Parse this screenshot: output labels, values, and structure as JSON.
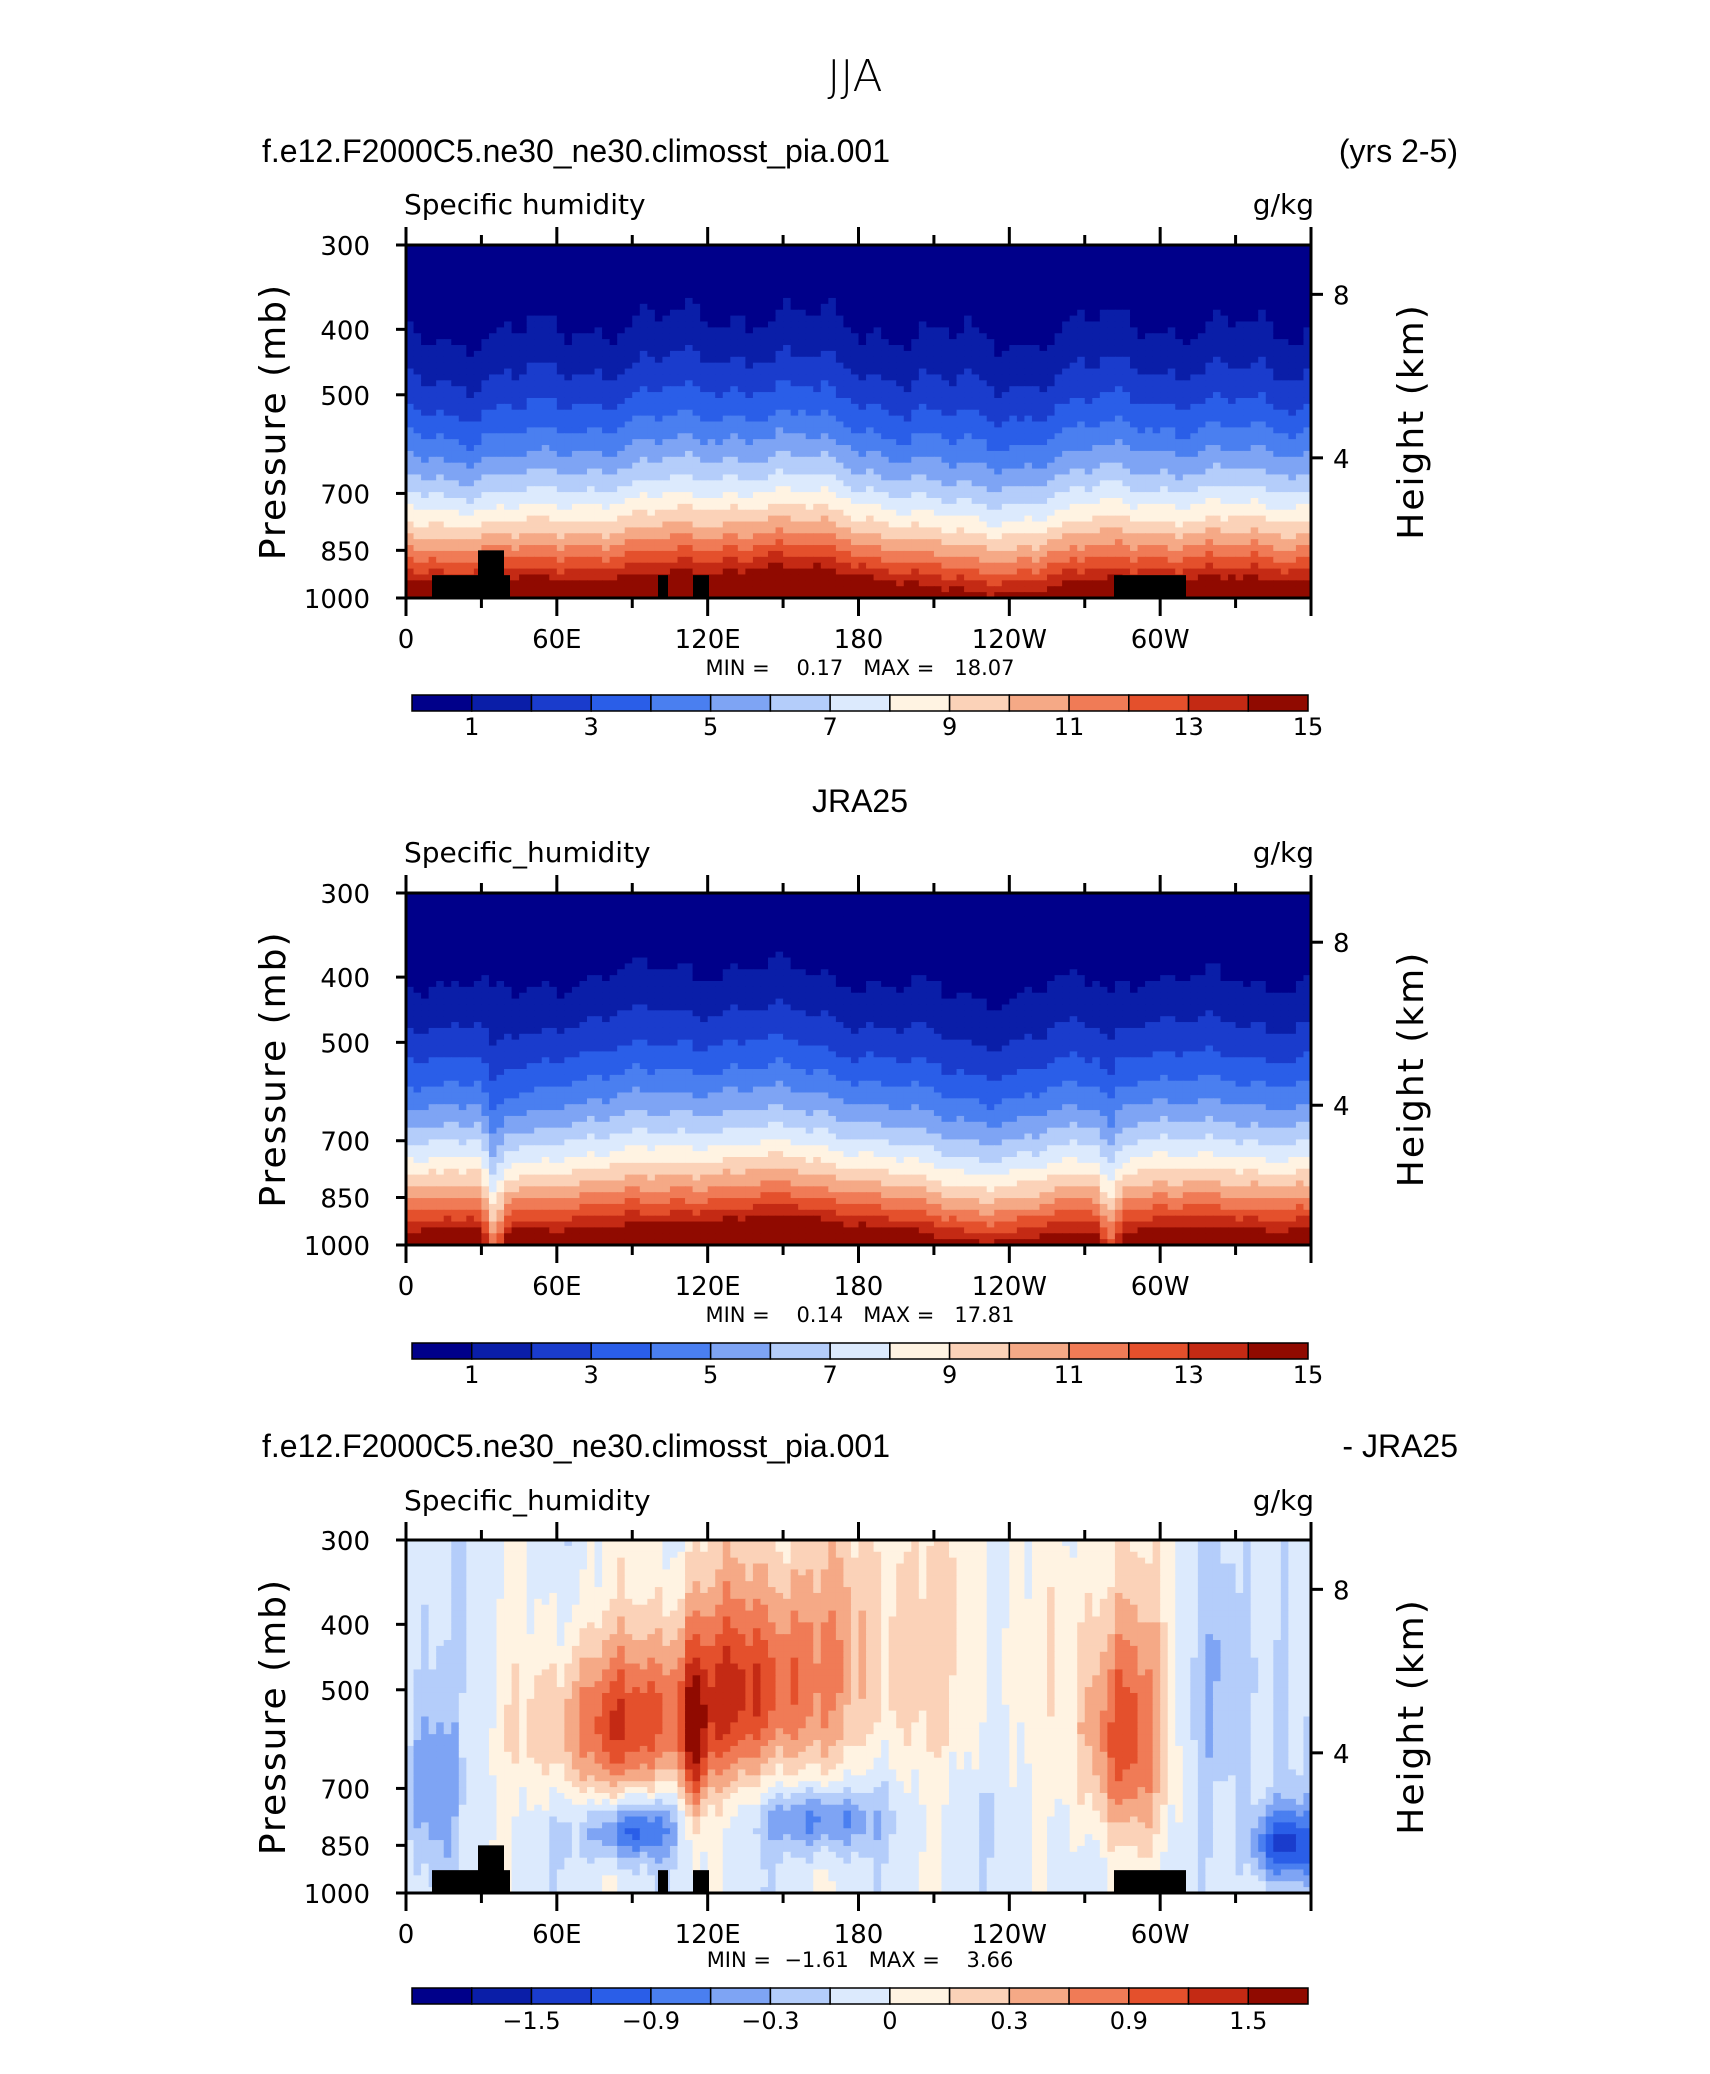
{
  "figure_title": "JJA",
  "chart_data": [
    {
      "type": "heatmap",
      "title_left": "f.e12.F2000C5.ne30_ne30.climosst_pia.001",
      "title_right": "(yrs 2-5)",
      "center_title": "",
      "variable_label": "Specific humidity",
      "units": "g/kg",
      "ylabel": "Pressure (mb)",
      "ylabel_right": "Height (km)",
      "yticks": [
        "300",
        "400",
        "500",
        "700",
        "850",
        "1000"
      ],
      "yticks_right": [
        "8",
        "4"
      ],
      "xticks": [
        "0",
        "60E",
        "120E",
        "180",
        "120W",
        "60W"
      ],
      "stats_text": "MIN =    0.17   MAX =   18.07",
      "min": 0.17,
      "max": 18.07,
      "colorbar_labels": [
        "1",
        "3",
        "5",
        "7",
        "9",
        "11",
        "13",
        "15"
      ],
      "has_topography": true,
      "field": "model"
    },
    {
      "type": "heatmap",
      "title_left": "",
      "title_right": "",
      "center_title": "JRA25",
      "variable_label": "Specific_humidity",
      "units": "g/kg",
      "ylabel": "Pressure (mb)",
      "ylabel_right": "Height (km)",
      "yticks": [
        "300",
        "400",
        "500",
        "700",
        "850",
        "1000"
      ],
      "yticks_right": [
        "8",
        "4"
      ],
      "xticks": [
        "0",
        "60E",
        "120E",
        "180",
        "120W",
        "60W"
      ],
      "stats_text": "MIN =    0.14   MAX =   17.81",
      "min": 0.14,
      "max": 17.81,
      "colorbar_labels": [
        "1",
        "3",
        "5",
        "7",
        "9",
        "11",
        "13",
        "15"
      ],
      "has_topography": false,
      "field": "obs"
    },
    {
      "type": "heatmap",
      "title_left": "f.e12.F2000C5.ne30_ne30.climosst_pia.001",
      "title_right": "- JRA25",
      "center_title": "",
      "variable_label": "Specific_humidity",
      "units": "g/kg",
      "ylabel": "Pressure (mb)",
      "ylabel_right": "Height (km)",
      "yticks": [
        "300",
        "400",
        "500",
        "700",
        "850",
        "1000"
      ],
      "yticks_right": [
        "8",
        "4"
      ],
      "xticks": [
        "0",
        "60E",
        "120E",
        "180",
        "120W",
        "60W"
      ],
      "stats_text": "MIN =  −1.61   MAX =    3.66",
      "min": -1.61,
      "max": 3.66,
      "colorbar_labels": [
        "−1.5",
        "−0.9",
        "−0.3",
        "0",
        "0.3",
        "0.9",
        "1.5"
      ],
      "has_topography": true,
      "field": "diff"
    }
  ],
  "colorbar_colors": [
    "#00008a",
    "#0a1ea8",
    "#1a3ccc",
    "#2a5ee8",
    "#4a7ff0",
    "#7ea4f4",
    "#b4cdfa",
    "#dceafd",
    "#fff3e2",
    "#fbd2b8",
    "#f5a986",
    "#f07b56",
    "#e4502c",
    "#c42a14",
    "#900a00"
  ]
}
